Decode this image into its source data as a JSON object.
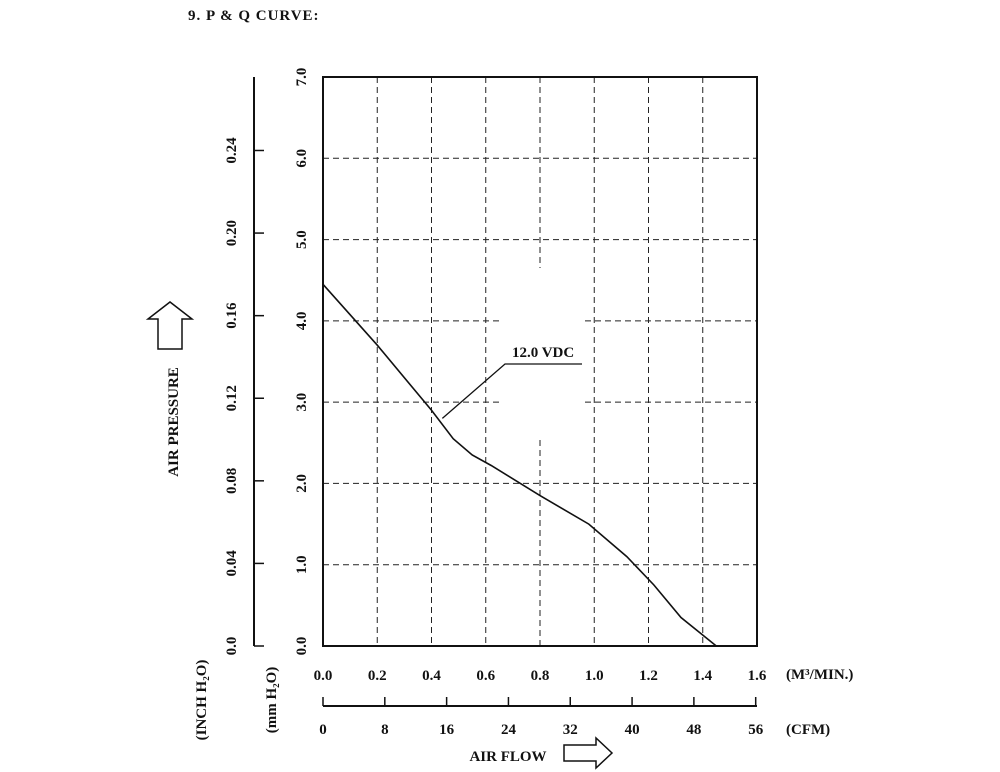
{
  "heading": "9. P & Q CURVE:",
  "chart_data": {
    "type": "line",
    "title": "P & Q CURVE",
    "x_primary": {
      "unit_label": "(M³/MIN.)",
      "lim": [
        0,
        1.6
      ],
      "ticks": [
        0,
        0.2,
        0.4,
        0.6,
        0.8,
        1.0,
        1.2,
        1.4,
        1.6
      ],
      "tick_labels": [
        "0.0",
        "0.2",
        "0.4",
        "0.6",
        "0.8",
        "1.0",
        "1.2",
        "1.4",
        "1.6"
      ]
    },
    "x_secondary": {
      "unit_label": "(CFM)",
      "ticks": [
        0,
        8,
        16,
        24,
        32,
        40,
        48,
        56
      ],
      "tick_labels": [
        "0",
        "8",
        "16",
        "24",
        "32",
        "40",
        "48",
        "56"
      ]
    },
    "xlabel": "AIR FLOW",
    "y_primary": {
      "unit_label": "(mm H₂O)",
      "lim": [
        0,
        7
      ],
      "ticks": [
        0,
        1,
        2,
        3,
        4,
        5,
        6,
        7
      ],
      "tick_labels": [
        "0.0",
        "1.0",
        "2.0",
        "3.0",
        "4.0",
        "5.0",
        "6.0",
        "7.0"
      ]
    },
    "y_secondary": {
      "unit_label": "(INCH H₂O)",
      "ticks": [
        0,
        0.04,
        0.08,
        0.12,
        0.16,
        0.2,
        0.24
      ],
      "tick_labels": [
        "0.0",
        "0.04",
        "0.08",
        "0.12",
        "0.16",
        "0.20",
        "0.24"
      ]
    },
    "ylabel": "AIR PRESSURE",
    "grid": true,
    "series": [
      {
        "name": "12.0 VDC",
        "x": [
          0.0,
          0.2,
          0.4,
          0.48,
          0.55,
          0.62,
          0.8,
          0.98,
          1.12,
          1.22,
          1.32,
          1.45
        ],
        "y": [
          4.45,
          3.7,
          2.9,
          2.55,
          2.35,
          2.22,
          1.85,
          1.5,
          1.1,
          0.75,
          0.35,
          0.0
        ]
      }
    ],
    "annotations": [
      {
        "text": "12.0 VDC",
        "points_to": [
          0.44,
          2.8
        ]
      }
    ]
  }
}
